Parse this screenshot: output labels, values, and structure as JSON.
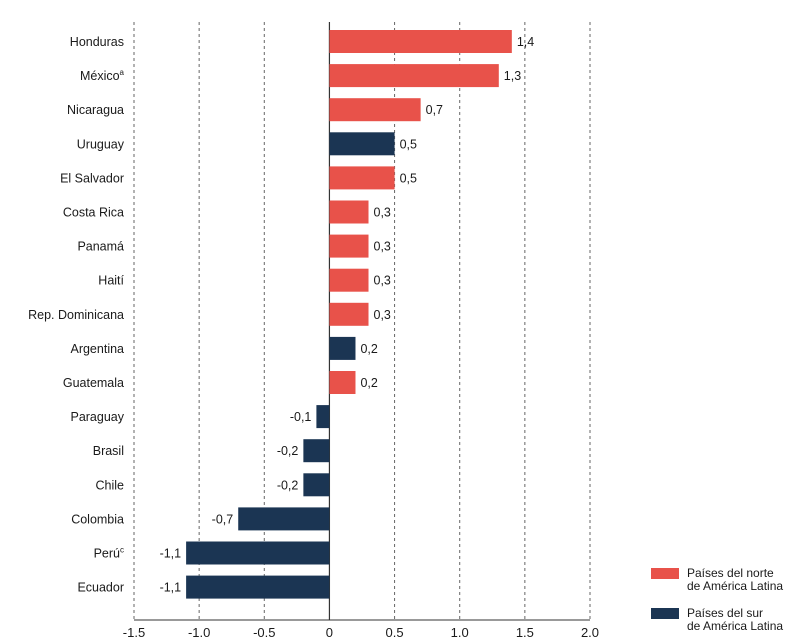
{
  "chart_data": {
    "type": "bar",
    "orientation": "horizontal",
    "categories": [
      "Honduras",
      "México",
      "Nicaragua",
      "Uruguay",
      "El Salvador",
      "Costa Rica",
      "Panamá",
      "Haití",
      "Rep. Dominicana",
      "Argentina",
      "Guatemala",
      "Paraguay",
      "Brasil",
      "Chile",
      "Colombia",
      "Perú",
      "Ecuador"
    ],
    "category_superscripts": [
      "",
      "a",
      "",
      "",
      "",
      "",
      "",
      "",
      "",
      "",
      "",
      "",
      "",
      "",
      "",
      "c",
      ""
    ],
    "values": [
      1.4,
      1.3,
      0.7,
      0.5,
      0.5,
      0.3,
      0.3,
      0.3,
      0.3,
      0.2,
      0.2,
      -0.1,
      -0.2,
      -0.2,
      -0.7,
      -1.1,
      -1.1
    ],
    "value_labels": [
      "1,4",
      "1,3",
      "0,7",
      "0,5",
      "0,5",
      "0,3",
      "0,3",
      "0,3",
      "0,3",
      "0,2",
      "0,2",
      "-0,1",
      "-0,2",
      "-0,2",
      "-0,7",
      "-1,1",
      "-1,1"
    ],
    "groups": [
      "north",
      "north",
      "north",
      "south",
      "north",
      "north",
      "north",
      "north",
      "north",
      "south",
      "north",
      "south",
      "south",
      "south",
      "south",
      "south",
      "south"
    ],
    "legend": [
      {
        "key": "north",
        "line1": "Países del norte",
        "line2": "de América Latina",
        "color": "#e8524a"
      },
      {
        "key": "south",
        "line1": "Países del sur",
        "line2": "de América Latina",
        "color": "#1b3553"
      }
    ],
    "xlim": [
      -1.5,
      2.0
    ],
    "x_ticks": [
      -1.5,
      -1.0,
      -0.5,
      0,
      0.5,
      1.0,
      1.5,
      2.0
    ],
    "x_tick_labels": [
      "-1.5",
      "-1.0",
      "-0.5",
      "0",
      "0.5",
      "1.0",
      "1.5",
      "2.0"
    ],
    "grid": "vertical-dashed",
    "legend_position": "bottom-right"
  }
}
